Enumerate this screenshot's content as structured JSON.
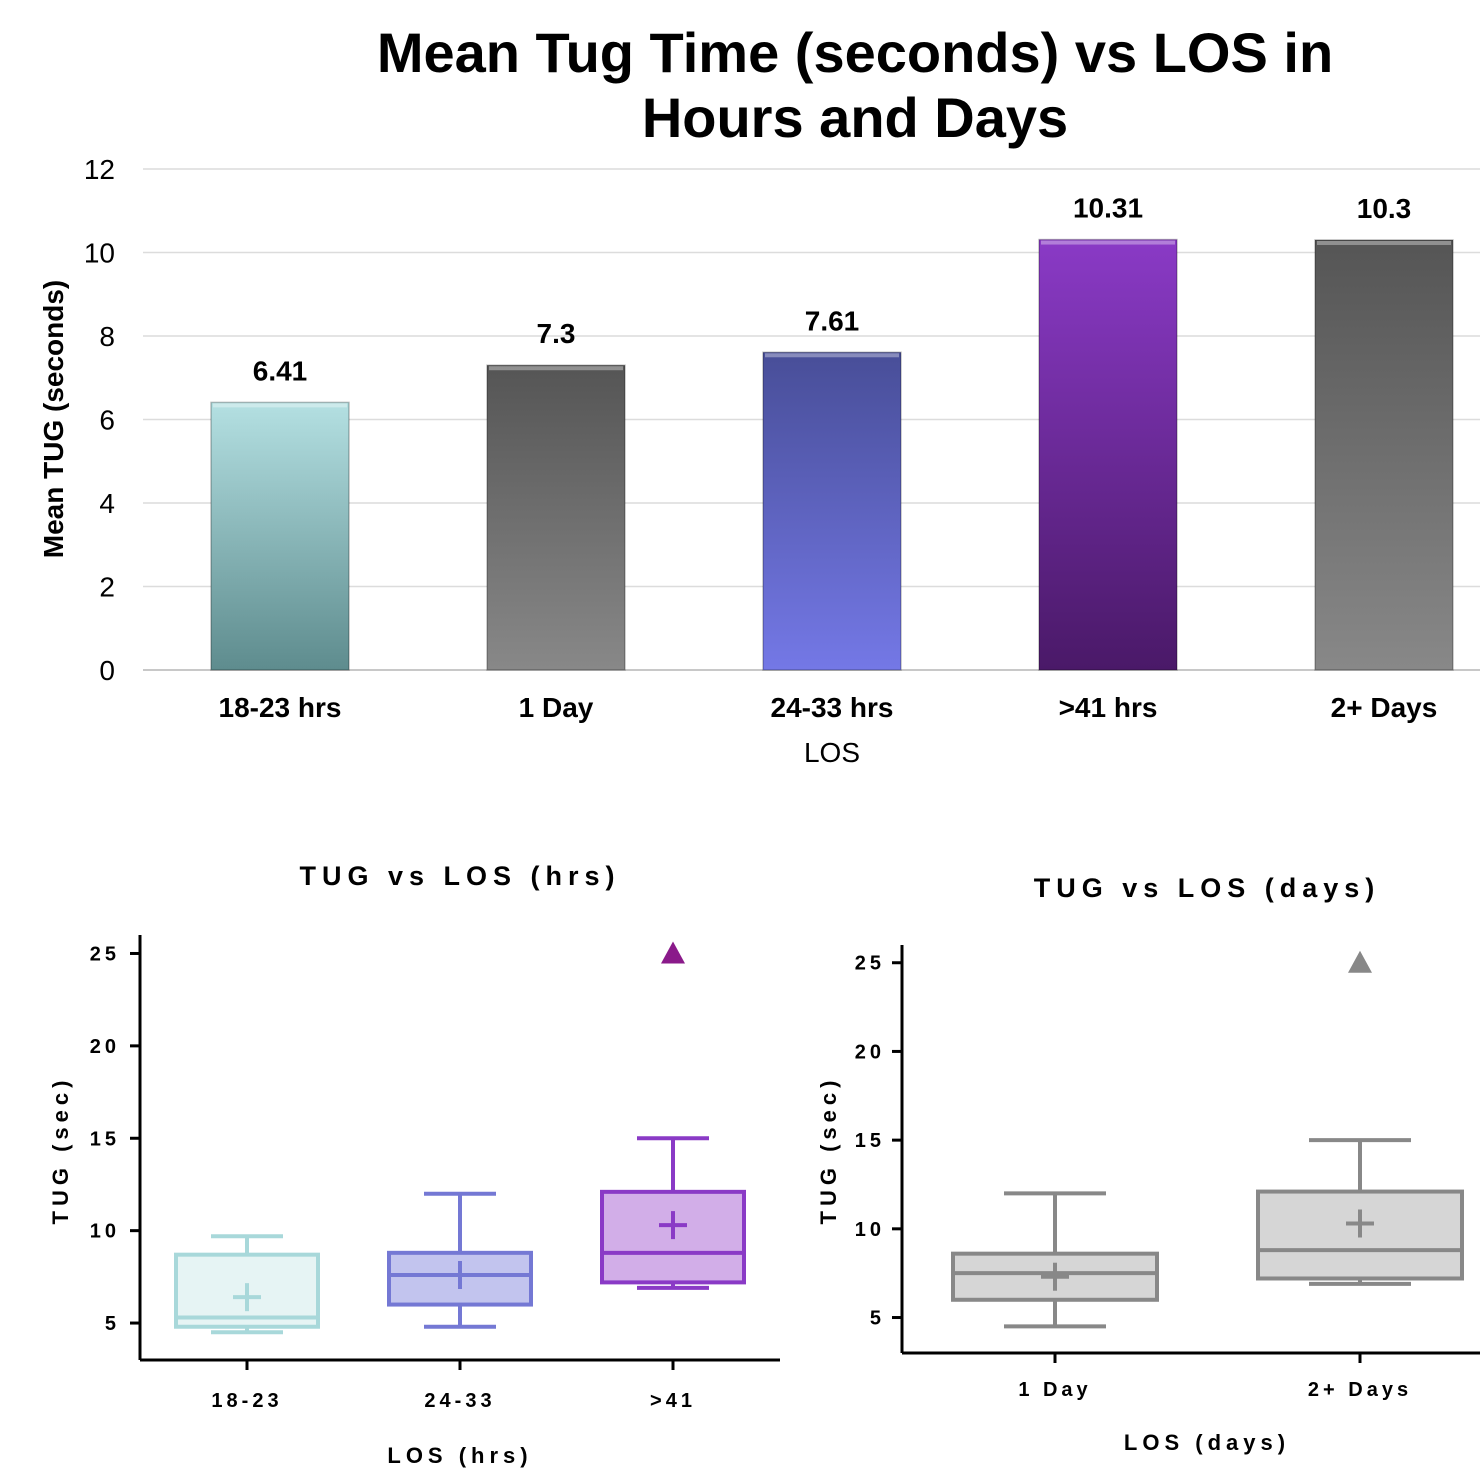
{
  "chart_data": [
    {
      "type": "bar",
      "title_lines": [
        "Mean Tug Time (seconds) vs LOS in",
        "Hours and Days"
      ],
      "xlabel": "LOS",
      "ylabel": "Mean TUG (seconds)",
      "ylim": [
        0,
        12
      ],
      "yticks": [
        0,
        2,
        4,
        6,
        8,
        10,
        12
      ],
      "grid": true,
      "categories": [
        "18-23 hrs",
        "1 Day",
        "24-33 hrs",
        ">41 hrs",
        "2+ Days"
      ],
      "values": [
        6.41,
        7.3,
        7.61,
        10.31,
        10.3
      ],
      "value_labels": [
        "6.41",
        "7.3",
        "7.61",
        "10.31",
        "10.3"
      ],
      "colors": [
        [
          "#b4e0e2",
          "#5e8c8e"
        ],
        [
          "#555555",
          "#888888"
        ],
        [
          "#484e98",
          "#7478e6"
        ],
        [
          "#8a3ac6",
          "#4a1968"
        ],
        [
          "#555555",
          "#888888"
        ]
      ]
    },
    {
      "type": "box",
      "title": "TUG vs LOS (hrs)",
      "xlabel": "LOS (hrs)",
      "ylabel": "TUG (sec)",
      "ylim": [
        3,
        26
      ],
      "yticks": [
        5,
        10,
        15,
        20,
        25
      ],
      "categories": [
        "18-23",
        "24-33",
        ">41"
      ],
      "boxes": [
        {
          "min": 4.5,
          "q1": 4.8,
          "median": 5.3,
          "q3": 8.7,
          "max": 9.7,
          "mean": 6.4,
          "outliers": [],
          "stroke": "#a8d8da",
          "fill": "#e6f4f4"
        },
        {
          "min": 4.8,
          "q1": 6.0,
          "median": 7.6,
          "q3": 8.8,
          "max": 12.0,
          "mean": 7.6,
          "outliers": [],
          "stroke": "#7478d4",
          "fill": "#c2c4ee"
        },
        {
          "min": 6.9,
          "q1": 7.2,
          "median": 8.8,
          "q3": 12.1,
          "max": 15.0,
          "mean": 10.3,
          "outliers": [
            25
          ],
          "stroke": "#8a3ac6",
          "fill": "#d2aee8"
        }
      ],
      "outlier_colors": [
        "#8a1a8a"
      ]
    },
    {
      "type": "box",
      "title": "TUG vs LOS (days)",
      "xlabel": "LOS (days)",
      "ylabel": "TUG (sec)",
      "ylim": [
        3,
        26
      ],
      "yticks": [
        5,
        10,
        15,
        20,
        25
      ],
      "categories": [
        "1 Day",
        "2+ Days"
      ],
      "boxes": [
        {
          "min": 4.5,
          "q1": 6.0,
          "median": 7.5,
          "q3": 8.6,
          "max": 12.0,
          "mean": 7.3,
          "outliers": [],
          "stroke": "#888888",
          "fill": "#d6d6d6"
        },
        {
          "min": 6.9,
          "q1": 7.2,
          "median": 8.8,
          "q3": 12.1,
          "max": 15.0,
          "mean": 10.3,
          "outliers": [
            25
          ],
          "stroke": "#888888",
          "fill": "#d6d6d6"
        }
      ],
      "outlier_colors": [
        "#888888"
      ]
    }
  ]
}
